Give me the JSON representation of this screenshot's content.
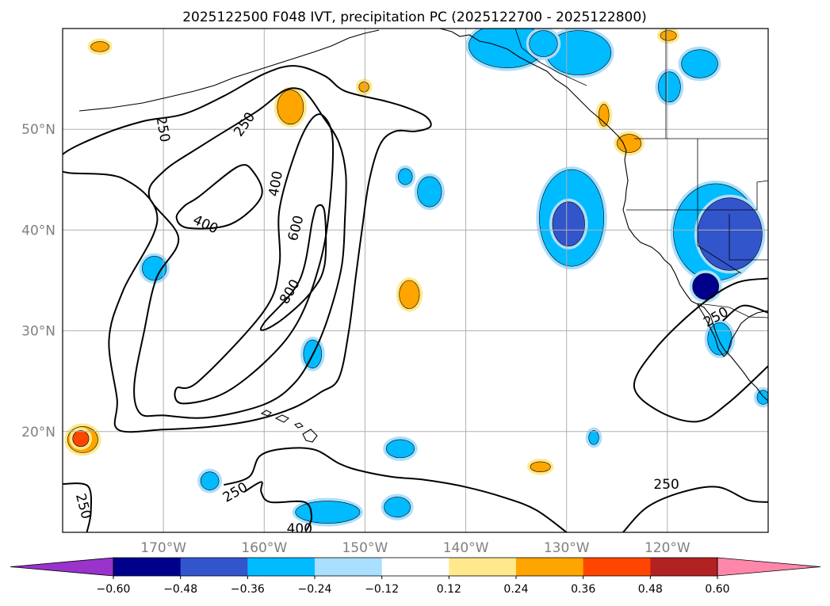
{
  "chart_data": {
    "type": "contour-map",
    "title": "2025122500 F048 IVT, precipitation PC (2025122700 - 2025122800)",
    "lon_range": [
      -180,
      -110
    ],
    "lat_range": [
      10,
      60
    ],
    "x_ticks": [
      {
        "lon": -170,
        "label": "170°W"
      },
      {
        "lon": -160,
        "label": "160°W"
      },
      {
        "lon": -150,
        "label": "150°W"
      },
      {
        "lon": -140,
        "label": "140°W"
      },
      {
        "lon": -130,
        "label": "130°W"
      },
      {
        "lon": -120,
        "label": "120°W"
      }
    ],
    "y_ticks": [
      {
        "lat": 20,
        "label": "20°N"
      },
      {
        "lat": 30,
        "label": "30°N"
      },
      {
        "lat": 40,
        "label": "40°N"
      },
      {
        "lat": 50,
        "label": "50°N"
      }
    ],
    "ivt_contour_levels": [
      250,
      400,
      600,
      800
    ],
    "ivt_contour_labels": [
      {
        "text": "250",
        "lon": -170,
        "lat": 50,
        "rot": 80
      },
      {
        "text": "250",
        "lon": -162,
        "lat": 50.5,
        "rot": -55
      },
      {
        "text": "400",
        "lon": -165.8,
        "lat": 40.6,
        "rot": 25
      },
      {
        "text": "400",
        "lon": -158.9,
        "lat": 44.6,
        "rot": -80
      },
      {
        "text": "600",
        "lon": -156.9,
        "lat": 40.2,
        "rot": -75
      },
      {
        "text": "800",
        "lon": -157.5,
        "lat": 33.9,
        "rot": -60
      },
      {
        "text": "250",
        "lon": -162.9,
        "lat": 14,
        "rot": -30
      },
      {
        "text": "250",
        "lon": -177.9,
        "lat": 12.6,
        "rot": 75
      },
      {
        "text": "400",
        "lon": -156.5,
        "lat": 10.4,
        "rot": 0
      },
      {
        "text": "250",
        "lon": -120.1,
        "lat": 14.8,
        "rot": 0
      },
      {
        "text": "250",
        "lon": -115.2,
        "lat": 31.4,
        "rot": -30
      }
    ],
    "colorbar": {
      "boundaries": [
        -0.6,
        -0.48,
        -0.36,
        -0.24,
        -0.12,
        0.12,
        0.24,
        0.36,
        0.48,
        0.6
      ],
      "tick_labels": [
        "−0.60",
        "−0.48",
        "−0.36",
        "−0.24",
        "−0.12",
        "0.12",
        "0.24",
        "0.36",
        "0.48",
        "0.60"
      ],
      "colors": [
        "#9933cc",
        "#00008b",
        "#3355cc",
        "#00bbff",
        "#aadfff",
        "#ffffff",
        "#ffe98c",
        "#ffa500",
        "#ff4500",
        "#b22222",
        "#ff88aa"
      ],
      "extend": "both"
    },
    "precip_pc_regions": [
      {
        "lon": -129.5,
        "lat": 41.2,
        "rlon": 3.2,
        "rlat": 4.8,
        "value": -0.3
      },
      {
        "lon": -129.8,
        "lat": 40.6,
        "rlon": 1.6,
        "rlat": 2.2,
        "value": -0.42
      },
      {
        "lon": -135.9,
        "lat": 58.3,
        "rlon": 3.8,
        "rlat": 2.2,
        "value": -0.3
      },
      {
        "lon": -128.8,
        "lat": 57.6,
        "rlon": 3.2,
        "rlat": 2.2,
        "value": -0.3
      },
      {
        "lon": -132.3,
        "lat": 58.5,
        "rlon": 1.4,
        "rlat": 1.3,
        "value": -0.3
      },
      {
        "lon": -116.8,
        "lat": 56.5,
        "rlon": 1.8,
        "rlat": 1.4,
        "value": -0.3
      },
      {
        "lon": -119.8,
        "lat": 54.2,
        "rlon": 1.1,
        "rlat": 1.5,
        "value": -0.3
      },
      {
        "lon": -115.2,
        "lat": 39.8,
        "rlon": 4.2,
        "rlat": 4.8,
        "value": -0.3
      },
      {
        "lon": -113.8,
        "lat": 39.6,
        "rlon": 3.2,
        "rlat": 3.6,
        "value": -0.42
      },
      {
        "lon": -116.2,
        "lat": 34.4,
        "rlon": 1.3,
        "rlat": 1.3,
        "value": -0.54
      },
      {
        "lon": -146,
        "lat": 45.3,
        "rlon": 0.7,
        "rlat": 0.8,
        "value": -0.3
      },
      {
        "lon": -143.6,
        "lat": 43.8,
        "rlon": 1.2,
        "rlat": 1.5,
        "value": -0.3
      },
      {
        "lon": -170.9,
        "lat": 36.2,
        "rlon": 1.2,
        "rlat": 1.2,
        "value": -0.3
      },
      {
        "lon": -155.2,
        "lat": 27.7,
        "rlon": 0.9,
        "rlat": 1.4,
        "value": -0.3
      },
      {
        "lon": -146.5,
        "lat": 18.3,
        "rlon": 1.4,
        "rlat": 0.9,
        "value": -0.3
      },
      {
        "lon": -165.4,
        "lat": 15.1,
        "rlon": 0.9,
        "rlat": 0.9,
        "value": -0.3
      },
      {
        "lon": -153.7,
        "lat": 12,
        "rlon": 3.2,
        "rlat": 1.1,
        "value": -0.3
      },
      {
        "lon": -146.8,
        "lat": 12.5,
        "rlon": 1.3,
        "rlat": 1,
        "value": -0.3
      },
      {
        "lon": -127.3,
        "lat": 19.4,
        "rlon": 0.5,
        "rlat": 0.7,
        "value": -0.3
      },
      {
        "lon": -114.8,
        "lat": 29.2,
        "rlon": 1.2,
        "rlat": 1.6,
        "value": -0.3
      },
      {
        "lon": -110.5,
        "lat": 23.4,
        "rlon": 0.6,
        "rlat": 0.7,
        "value": -0.3
      },
      {
        "lon": -157.4,
        "lat": 52.2,
        "rlon": 1.3,
        "rlat": 1.7,
        "value": 0.32
      },
      {
        "lon": -145.6,
        "lat": 33.6,
        "rlon": 1,
        "rlat": 1.4,
        "value": 0.32
      },
      {
        "lon": -178,
        "lat": 19.2,
        "rlon": 1.5,
        "rlat": 1.3,
        "value": 0.32
      },
      {
        "lon": -178.2,
        "lat": 19.3,
        "rlon": 0.8,
        "rlat": 0.8,
        "value": 0.42
      },
      {
        "lon": -123.8,
        "lat": 48.6,
        "rlon": 1.2,
        "rlat": 0.9,
        "value": 0.32
      },
      {
        "lon": -126.3,
        "lat": 51.4,
        "rlon": 0.5,
        "rlat": 1.1,
        "value": 0.32
      },
      {
        "lon": -132.6,
        "lat": 16.5,
        "rlon": 1,
        "rlat": 0.5,
        "value": 0.32
      },
      {
        "lon": -176.3,
        "lat": 58.2,
        "rlon": 0.9,
        "rlat": 0.5,
        "value": 0.32
      },
      {
        "lon": -119.9,
        "lat": 59.3,
        "rlon": 0.8,
        "rlat": 0.5,
        "value": 0.32
      },
      {
        "lon": -150.1,
        "lat": 54.2,
        "rlon": 0.5,
        "rlat": 0.5,
        "value": 0.32
      }
    ],
    "ivt_contours": [
      {
        "level": 250,
        "points": [
          [
            -180,
            47.5
          ],
          [
            -176,
            49.5
          ],
          [
            -172,
            50.8
          ],
          [
            -168,
            51.5
          ],
          [
            -164,
            53.3
          ],
          [
            -160,
            55.5
          ],
          [
            -157,
            56.3
          ],
          [
            -154,
            55.3
          ],
          [
            -152,
            53.8
          ],
          [
            -148,
            52.8
          ],
          [
            -146,
            52.2
          ],
          [
            -144,
            51.3
          ],
          [
            -143.5,
            50.3
          ],
          [
            -145,
            49.8
          ],
          [
            -147,
            49.8
          ],
          [
            -148.5,
            48.5
          ],
          [
            -149.6,
            44.8
          ],
          [
            -150.3,
            40
          ],
          [
            -150.9,
            35.5
          ],
          [
            -151.6,
            30
          ],
          [
            -152.6,
            25.3
          ],
          [
            -154.4,
            23.9
          ],
          [
            -157,
            22.4
          ],
          [
            -160.7,
            21.2
          ],
          [
            -165.1,
            20.5
          ],
          [
            -170,
            20.2
          ],
          [
            -174.5,
            20.2
          ],
          [
            -174.6,
            23.2
          ],
          [
            -175.4,
            29.1
          ],
          [
            -174,
            34
          ],
          [
            -170.6,
            41.1
          ],
          [
            -174,
            45.1
          ],
          [
            -180,
            45.8
          ]
        ]
      },
      {
        "level": 400,
        "points": [
          [
            -168.5,
            39.2
          ],
          [
            -171.4,
            43.3
          ],
          [
            -170,
            45.8
          ],
          [
            -166,
            48.5
          ],
          [
            -160.7,
            51.8
          ],
          [
            -158.1,
            53.8
          ],
          [
            -156.5,
            54
          ],
          [
            -155.5,
            53.2
          ],
          [
            -154.2,
            51.3
          ],
          [
            -152.6,
            48.7
          ],
          [
            -151.9,
            45.5
          ],
          [
            -152,
            41
          ],
          [
            -152.3,
            36.5
          ],
          [
            -153.5,
            31.8
          ],
          [
            -155,
            28
          ],
          [
            -157,
            24.8
          ],
          [
            -160,
            22.7
          ],
          [
            -165.6,
            21.4
          ],
          [
            -170,
            21.6
          ],
          [
            -172.3,
            21.8
          ],
          [
            -172.9,
            24.5
          ],
          [
            -171.9,
            30
          ],
          [
            -170.7,
            35.2
          ]
        ]
      },
      {
        "level": 400,
        "points": [
          [
            -166.5,
            43.3
          ],
          [
            -162.6,
            46.3
          ],
          [
            -161.1,
            45.8
          ],
          [
            -160.3,
            43.3
          ],
          [
            -163.3,
            40.6
          ],
          [
            -167.5,
            40.2
          ],
          [
            -168.7,
            41.2
          ],
          [
            -167.9,
            42.4
          ]
        ]
      },
      {
        "level": 600,
        "points": [
          [
            -166.5,
            25
          ],
          [
            -160,
            32
          ],
          [
            -158.5,
            36.5
          ],
          [
            -158.5,
            42
          ],
          [
            -156.8,
            48
          ],
          [
            -155.3,
            51
          ],
          [
            -154.1,
            51.3
          ],
          [
            -153.2,
            48.9
          ],
          [
            -153.5,
            42.5
          ],
          [
            -154.4,
            37
          ],
          [
            -156.5,
            31.2
          ],
          [
            -159.5,
            27.3
          ],
          [
            -164,
            23.8
          ],
          [
            -168.2,
            22.8
          ],
          [
            -168.7,
            24.3
          ]
        ]
      },
      {
        "level": 800,
        "points": [
          [
            -160,
            30.8
          ],
          [
            -156.5,
            35
          ],
          [
            -155.2,
            41
          ],
          [
            -154.7,
            42.4
          ],
          [
            -154,
            41.7
          ],
          [
            -154,
            36.6
          ],
          [
            -155.3,
            33.9
          ],
          [
            -158,
            31.3
          ],
          [
            -160,
            30.1
          ]
        ]
      }
    ]
  }
}
